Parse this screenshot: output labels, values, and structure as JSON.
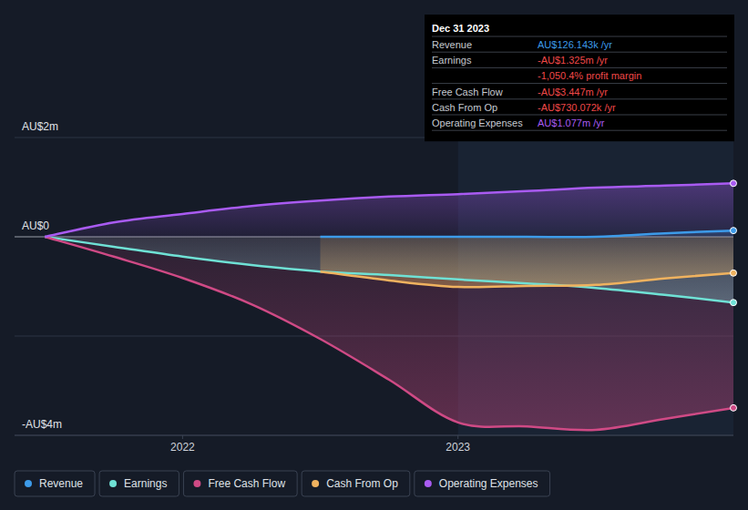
{
  "chart_data": {
    "type": "line",
    "x": [
      2021.5,
      2021.75,
      2022.0,
      2022.25,
      2022.5,
      2022.75,
      2023.0,
      2023.25,
      2023.5,
      2023.75,
      2024.0
    ],
    "xlim": [
      2021.39,
      2024.0
    ],
    "xticks": [
      2022,
      2023
    ],
    "ylim": [
      -4,
      2
    ],
    "yticks": [
      {
        "value": 2,
        "label": "AU$2m"
      },
      {
        "value": 0,
        "label": "AU$0"
      },
      {
        "value": -2,
        "label": null
      },
      {
        "value": -4,
        "label": "-AU$4m"
      }
    ],
    "grid": true,
    "legend": "bottom",
    "series": [
      {
        "name": "Revenue",
        "color": "#3d9be9",
        "values": [
          null,
          null,
          null,
          null,
          0,
          0,
          0,
          0,
          0,
          0.07,
          0.126
        ]
      },
      {
        "name": "Earnings",
        "color": "#6fe1d5",
        "values": [
          0,
          -0.2,
          -0.4,
          -0.57,
          -0.7,
          -0.77,
          -0.86,
          -0.94,
          -1.03,
          -1.17,
          -1.325
        ]
      },
      {
        "name": "Free Cash Flow",
        "color": "#cf4a85",
        "values": [
          0,
          -0.4,
          -0.83,
          -1.36,
          -2.06,
          -2.88,
          -3.74,
          -3.82,
          -3.89,
          -3.67,
          -3.447
        ]
      },
      {
        "name": "Cash From Op",
        "color": "#efb25f",
        "values": [
          null,
          null,
          null,
          null,
          -0.7,
          -0.88,
          -1.01,
          -0.99,
          -0.97,
          -0.84,
          -0.73
        ]
      },
      {
        "name": "Operating Expenses",
        "color": "#a95bf2",
        "values": [
          0,
          0.29,
          0.46,
          0.62,
          0.73,
          0.81,
          0.86,
          0.92,
          0.99,
          1.03,
          1.077
        ]
      }
    ],
    "tooltip": {
      "date": "Dec 31 2023",
      "rows": [
        {
          "label": "Revenue",
          "value": "AU$126.143k /yr"
        },
        {
          "label": "Earnings",
          "value": "-AU$1.325m /yr"
        },
        {
          "value": "-1,050.4% profit margin"
        },
        {
          "label": "Free Cash Flow",
          "value": "-AU$3.447m /yr"
        },
        {
          "label": "Cash From Op",
          "value": "-AU$730.072k /yr"
        },
        {
          "label": "Operating Expenses",
          "value": "AU$1.077m /yr"
        }
      ]
    }
  }
}
